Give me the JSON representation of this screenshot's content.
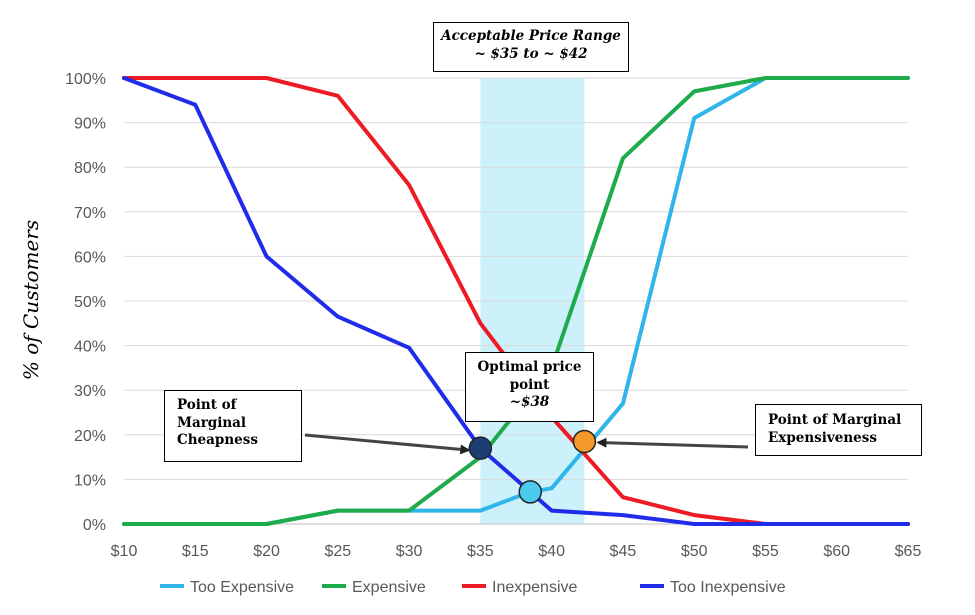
{
  "chart_data": {
    "type": "line",
    "x": [
      "$10",
      "$15",
      "$20",
      "$25",
      "$30",
      "$35",
      "$40",
      "$45",
      "$50",
      "$55",
      "$60",
      "$65"
    ],
    "x_values": [
      10,
      15,
      20,
      25,
      30,
      35,
      40,
      45,
      50,
      55,
      60,
      65
    ],
    "xlim": [
      10,
      65
    ],
    "ylim": [
      0,
      100
    ],
    "yticks": [
      "0%",
      "10%",
      "20%",
      "30%",
      "40%",
      "50%",
      "60%",
      "70%",
      "80%",
      "90%",
      "100%"
    ],
    "ylabel": "% of Customers",
    "grid": true,
    "legend_position": "bottom",
    "series": [
      {
        "name": "Too Expensive",
        "color": "#2EB6EA",
        "points": [
          [
            10,
            0
          ],
          [
            15,
            0
          ],
          [
            20,
            0
          ],
          [
            25,
            3
          ],
          [
            30,
            3
          ],
          [
            35,
            3
          ],
          [
            38.5,
            7.2
          ],
          [
            40,
            8
          ],
          [
            45,
            27
          ],
          [
            50,
            91
          ],
          [
            55,
            100
          ],
          [
            60,
            100
          ],
          [
            65,
            100
          ]
        ]
      },
      {
        "name": "Expensive",
        "color": "#1EAB4B",
        "points": [
          [
            10,
            0
          ],
          [
            15,
            0
          ],
          [
            20,
            0
          ],
          [
            25,
            3
          ],
          [
            30,
            3
          ],
          [
            35,
            15
          ],
          [
            40,
            35
          ],
          [
            45,
            82
          ],
          [
            50,
            97
          ],
          [
            55,
            100
          ],
          [
            60,
            100
          ],
          [
            65,
            100
          ]
        ]
      },
      {
        "name": "Inexpensive",
        "color": "#EE1B24",
        "points": [
          [
            10,
            100
          ],
          [
            15,
            100
          ],
          [
            20,
            100
          ],
          [
            25,
            96
          ],
          [
            30,
            76
          ],
          [
            35,
            45
          ],
          [
            40,
            24
          ],
          [
            45,
            6
          ],
          [
            50,
            2
          ],
          [
            55,
            0
          ],
          [
            60,
            0
          ],
          [
            65,
            0
          ]
        ]
      },
      {
        "name": "Too Inexpensive",
        "color": "#1F2CE9",
        "points": [
          [
            10,
            100
          ],
          [
            15,
            94
          ],
          [
            20,
            60
          ],
          [
            25,
            46.5
          ],
          [
            30,
            39.5
          ],
          [
            35,
            17
          ],
          [
            38.5,
            7.2
          ],
          [
            40,
            3
          ],
          [
            45,
            2
          ],
          [
            50,
            0
          ],
          [
            55,
            0
          ],
          [
            60,
            0
          ],
          [
            65,
            0
          ]
        ]
      }
    ],
    "highlight_range": {
      "from": 35.0,
      "to": 42.3,
      "color": "#CDF1FB"
    },
    "key_points": [
      {
        "name": "point-of-marginal-cheapness",
        "x": 35.0,
        "y": 17,
        "color": "#1D3E73"
      },
      {
        "name": "optimal-price-point",
        "x": 38.5,
        "y": 7.2,
        "color": "#4CCBEF"
      },
      {
        "name": "point-of-marginal-expensiveness",
        "x": 42.3,
        "y": 18.5,
        "color": "#F39A2A"
      }
    ]
  },
  "annotations": {
    "range_title": "Acceptable Price Range",
    "range_subtitle": "~ $35 to ~ $42",
    "optimal_line1": "Optimal price",
    "optimal_line2": "point",
    "optimal_line3": "~$38",
    "cheap_line1": "Point of",
    "cheap_line2": "Marginal",
    "cheap_line3": "Cheapness",
    "exp_line1": "Point of Marginal",
    "exp_line2": "Expensiveness"
  }
}
